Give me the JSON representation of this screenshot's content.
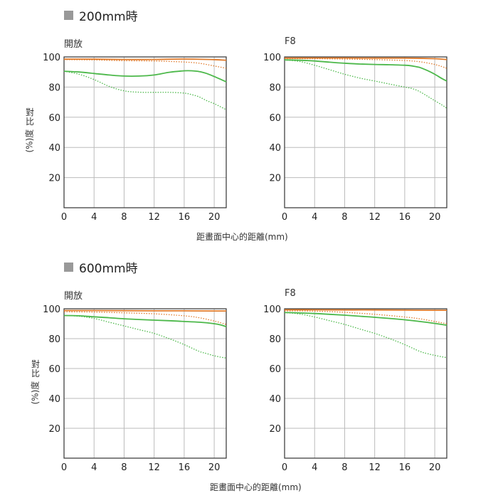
{
  "sections": [
    {
      "title": "200mm時",
      "ylabel_chars": "對比",
      "ylabel_rot": "(%)度",
      "xlabel": "距畫面中心的距離(mm)"
    },
    {
      "title": "600mm時",
      "ylabel_chars": "對比",
      "ylabel_rot": "(%)度",
      "xlabel": "距畫面中心的距離(mm)"
    }
  ],
  "colors": {
    "orange": "#e07a2a",
    "green": "#4cb84a",
    "grid": "#bbbbbb",
    "axis": "#333333"
  },
  "chart_data": [
    {
      "type": "line",
      "title": "開放",
      "xlim": [
        0,
        21.6
      ],
      "ylim": [
        0,
        100
      ],
      "xticks": [
        0,
        4,
        8,
        12,
        16,
        20
      ],
      "yticks": [
        20,
        40,
        60,
        80,
        100
      ],
      "grid": true,
      "series": [
        {
          "color": "orange",
          "style": "solid",
          "x": [
            0,
            4,
            8,
            12,
            16,
            20,
            21.6
          ],
          "y": [
            98.5,
            98.5,
            98.3,
            98.3,
            98.6,
            98.2,
            97.8
          ]
        },
        {
          "color": "orange",
          "style": "dotted",
          "x": [
            0,
            4,
            8,
            12,
            14,
            16,
            18,
            20,
            21.6
          ],
          "y": [
            98.2,
            98,
            97.5,
            97.3,
            97,
            96.6,
            95.8,
            94,
            92.5
          ]
        },
        {
          "color": "green",
          "style": "solid",
          "x": [
            0,
            2,
            4,
            6,
            8,
            10,
            12,
            14,
            16,
            17,
            18,
            19,
            20,
            21,
            21.6
          ],
          "y": [
            90.5,
            90,
            89,
            88,
            87.3,
            87.3,
            88,
            89.8,
            90.8,
            90.8,
            90.3,
            89,
            87,
            84.8,
            83.5
          ]
        },
        {
          "color": "green",
          "style": "dotted",
          "x": [
            0,
            2,
            4,
            6,
            8,
            10,
            12,
            14,
            16,
            17,
            18,
            19,
            20,
            21,
            21.6
          ],
          "y": [
            90.5,
            88.5,
            85,
            80.5,
            77.5,
            76.6,
            76.5,
            76.5,
            76,
            75,
            73.5,
            71,
            69,
            66.5,
            65
          ]
        }
      ]
    },
    {
      "type": "line",
      "title": "F8",
      "xlim": [
        0,
        21.6
      ],
      "ylim": [
        0,
        100
      ],
      "xticks": [
        0,
        4,
        8,
        12,
        16,
        20
      ],
      "yticks": [
        20,
        40,
        60,
        80,
        100
      ],
      "grid": true,
      "series": [
        {
          "color": "orange",
          "style": "solid",
          "x": [
            0,
            4,
            8,
            12,
            16,
            20,
            21.6
          ],
          "y": [
            99.2,
            99.3,
            99.3,
            99.2,
            99.2,
            98.8,
            98.2
          ]
        },
        {
          "color": "orange",
          "style": "dotted",
          "x": [
            0,
            4,
            8,
            12,
            16,
            18,
            20,
            21.6
          ],
          "y": [
            98.8,
            98.8,
            98.6,
            98.2,
            97.6,
            96.8,
            95,
            92.5
          ]
        },
        {
          "color": "green",
          "style": "solid",
          "x": [
            0,
            2,
            4,
            6,
            8,
            10,
            12,
            14,
            16,
            17,
            18,
            19,
            20,
            21,
            21.6
          ],
          "y": [
            98,
            97.8,
            97.3,
            96.5,
            95.8,
            95.3,
            95,
            94.8,
            94.5,
            94,
            93,
            91,
            88.5,
            85.5,
            84
          ]
        },
        {
          "color": "green",
          "style": "dotted",
          "x": [
            0,
            2,
            4,
            6,
            8,
            10,
            12,
            14,
            16,
            17,
            18,
            19,
            20,
            21,
            21.6
          ],
          "y": [
            98,
            97,
            94.5,
            91.5,
            88.5,
            86,
            84,
            82,
            80,
            79,
            77,
            74,
            71,
            68,
            66
          ]
        }
      ]
    },
    {
      "type": "line",
      "title": "開放",
      "xlim": [
        0,
        21.6
      ],
      "ylim": [
        0,
        100
      ],
      "xticks": [
        0,
        4,
        8,
        12,
        16,
        20
      ],
      "yticks": [
        20,
        40,
        60,
        80,
        100
      ],
      "grid": true,
      "series": [
        {
          "color": "orange",
          "style": "solid",
          "x": [
            0,
            4,
            8,
            12,
            16,
            20,
            21.6
          ],
          "y": [
            98.8,
            98.8,
            98.7,
            98.6,
            98.6,
            98.5,
            98.5
          ]
        },
        {
          "color": "orange",
          "style": "dotted",
          "x": [
            0,
            4,
            8,
            12,
            16,
            18,
            20,
            21.6
          ],
          "y": [
            98,
            97.8,
            97.3,
            96.6,
            95.3,
            94,
            91.8,
            89.5
          ]
        },
        {
          "color": "green",
          "style": "solid",
          "x": [
            0,
            2,
            4,
            6,
            8,
            10,
            12,
            14,
            16,
            18,
            20,
            21,
            21.6
          ],
          "y": [
            95.5,
            95.3,
            94.6,
            94,
            93.3,
            92.8,
            92.4,
            92,
            91.5,
            91,
            90,
            89,
            88
          ]
        },
        {
          "color": "green",
          "style": "dotted",
          "x": [
            0,
            2,
            4,
            6,
            8,
            10,
            12,
            14,
            16,
            18,
            19,
            20,
            21,
            21.6
          ],
          "y": [
            95.5,
            95,
            93.5,
            91,
            88.5,
            86,
            83.5,
            80,
            76,
            71.5,
            70,
            68.5,
            67.5,
            67
          ]
        }
      ]
    },
    {
      "type": "line",
      "title": "F8",
      "xlim": [
        0,
        21.6
      ],
      "ylim": [
        0,
        100
      ],
      "xticks": [
        0,
        4,
        8,
        12,
        16,
        20
      ],
      "yticks": [
        20,
        40,
        60,
        80,
        100
      ],
      "grid": true,
      "series": [
        {
          "color": "orange",
          "style": "solid",
          "x": [
            0,
            4,
            8,
            12,
            16,
            20,
            21.6
          ],
          "y": [
            99.3,
            99.3,
            99.2,
            99.2,
            99.1,
            99,
            99
          ]
        },
        {
          "color": "orange",
          "style": "dotted",
          "x": [
            0,
            4,
            8,
            12,
            16,
            18,
            20,
            21.6
          ],
          "y": [
            98.6,
            98.4,
            97.6,
            96.3,
            94.5,
            93.3,
            91.5,
            90
          ]
        },
        {
          "color": "green",
          "style": "solid",
          "x": [
            0,
            2,
            4,
            6,
            8,
            10,
            12,
            14,
            16,
            18,
            20,
            21.6
          ],
          "y": [
            97.5,
            97.2,
            96.8,
            96.3,
            95.7,
            95,
            94.3,
            93.5,
            92.6,
            91.5,
            90.2,
            89
          ]
        },
        {
          "color": "green",
          "style": "dotted",
          "x": [
            0,
            2,
            4,
            6,
            8,
            10,
            12,
            14,
            16,
            18,
            19,
            20,
            21,
            21.6
          ],
          "y": [
            97.5,
            96.5,
            94.5,
            92,
            89.5,
            86.5,
            83.5,
            80,
            76,
            71.5,
            70,
            68.8,
            67.8,
            67.3
          ]
        }
      ]
    }
  ]
}
